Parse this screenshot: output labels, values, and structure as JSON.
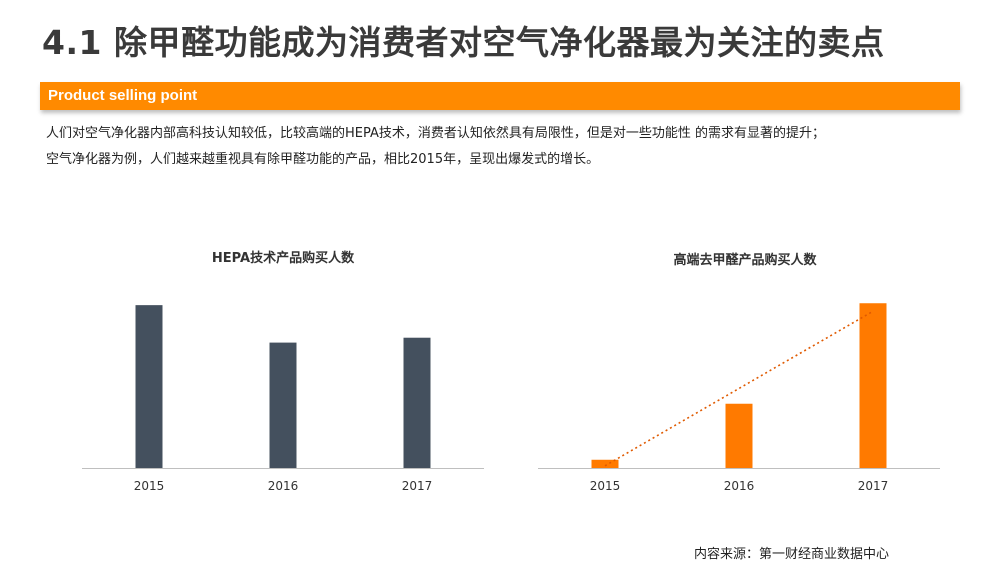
{
  "page": {
    "title": "4.1 除甲醛功能成为消费者对空气净化器最为关注的卖点",
    "banner": "Product selling point",
    "intro_lines": [
      "人们对空气净化器内部高科技认知较低，比较高端的HEPA技术，消费者认知依然具有局限性，但是对一些功能性 的需求有显著的提升；",
      "空气净化器为例，人们越来越重视具有除甲醛功能的产品，相比2015年，呈现出爆发式的增长。"
    ],
    "source": "内容来源：第一财经商业数据中心"
  },
  "colors": {
    "accent": "#ff8a00",
    "bar_dark": "#44505e",
    "bar_orange": "#ff7a00",
    "trend": "#e05a00",
    "axis": "#bfbfbf"
  },
  "chart_data": [
    {
      "type": "bar",
      "title": "HEPA技术产品购买人数",
      "categories": [
        "2015",
        "2016",
        "2017"
      ],
      "values": [
        100,
        77,
        80
      ],
      "ylim": [
        0,
        105
      ],
      "grid": false,
      "trendline": false
    },
    {
      "type": "bar",
      "title": "高端去甲醛产品购买人数",
      "categories": [
        "2015",
        "2016",
        "2017"
      ],
      "values": [
        5,
        39,
        100
      ],
      "ylim": [
        0,
        105
      ],
      "grid": false,
      "trendline": true
    }
  ]
}
